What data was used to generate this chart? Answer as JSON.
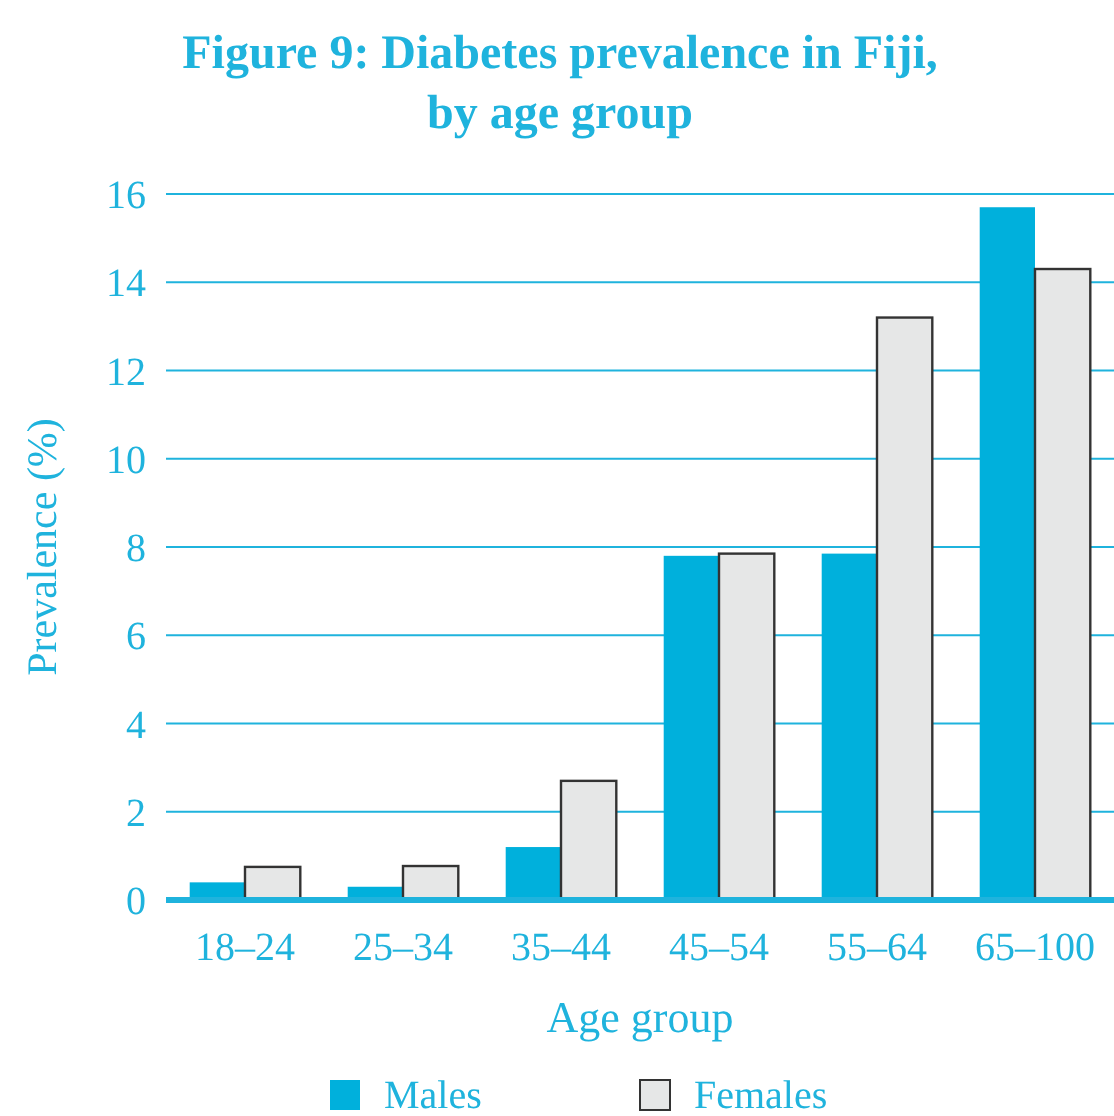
{
  "chart_data": {
    "type": "bar",
    "title": "Figure 9: Diabetes prevalence in Fiji, by age group",
    "xlabel": "Age group",
    "ylabel": "Prevalence (%)",
    "categories": [
      "18–24",
      "25–34",
      "35–44",
      "45–54",
      "55–64",
      "65–100"
    ],
    "series": [
      {
        "name": "Males",
        "color": "#00b0dc",
        "values": [
          0.4,
          0.3,
          1.2,
          7.8,
          7.85,
          15.7
        ]
      },
      {
        "name": "Females",
        "color": "#e6e7e7",
        "values": [
          0.75,
          0.77,
          2.7,
          7.85,
          13.2,
          14.3
        ]
      }
    ],
    "ylim": [
      0,
      16
    ],
    "yticks": [
      0,
      2,
      4,
      6,
      8,
      10,
      12,
      14,
      16
    ],
    "grid": "y",
    "legend": "bottom"
  }
}
